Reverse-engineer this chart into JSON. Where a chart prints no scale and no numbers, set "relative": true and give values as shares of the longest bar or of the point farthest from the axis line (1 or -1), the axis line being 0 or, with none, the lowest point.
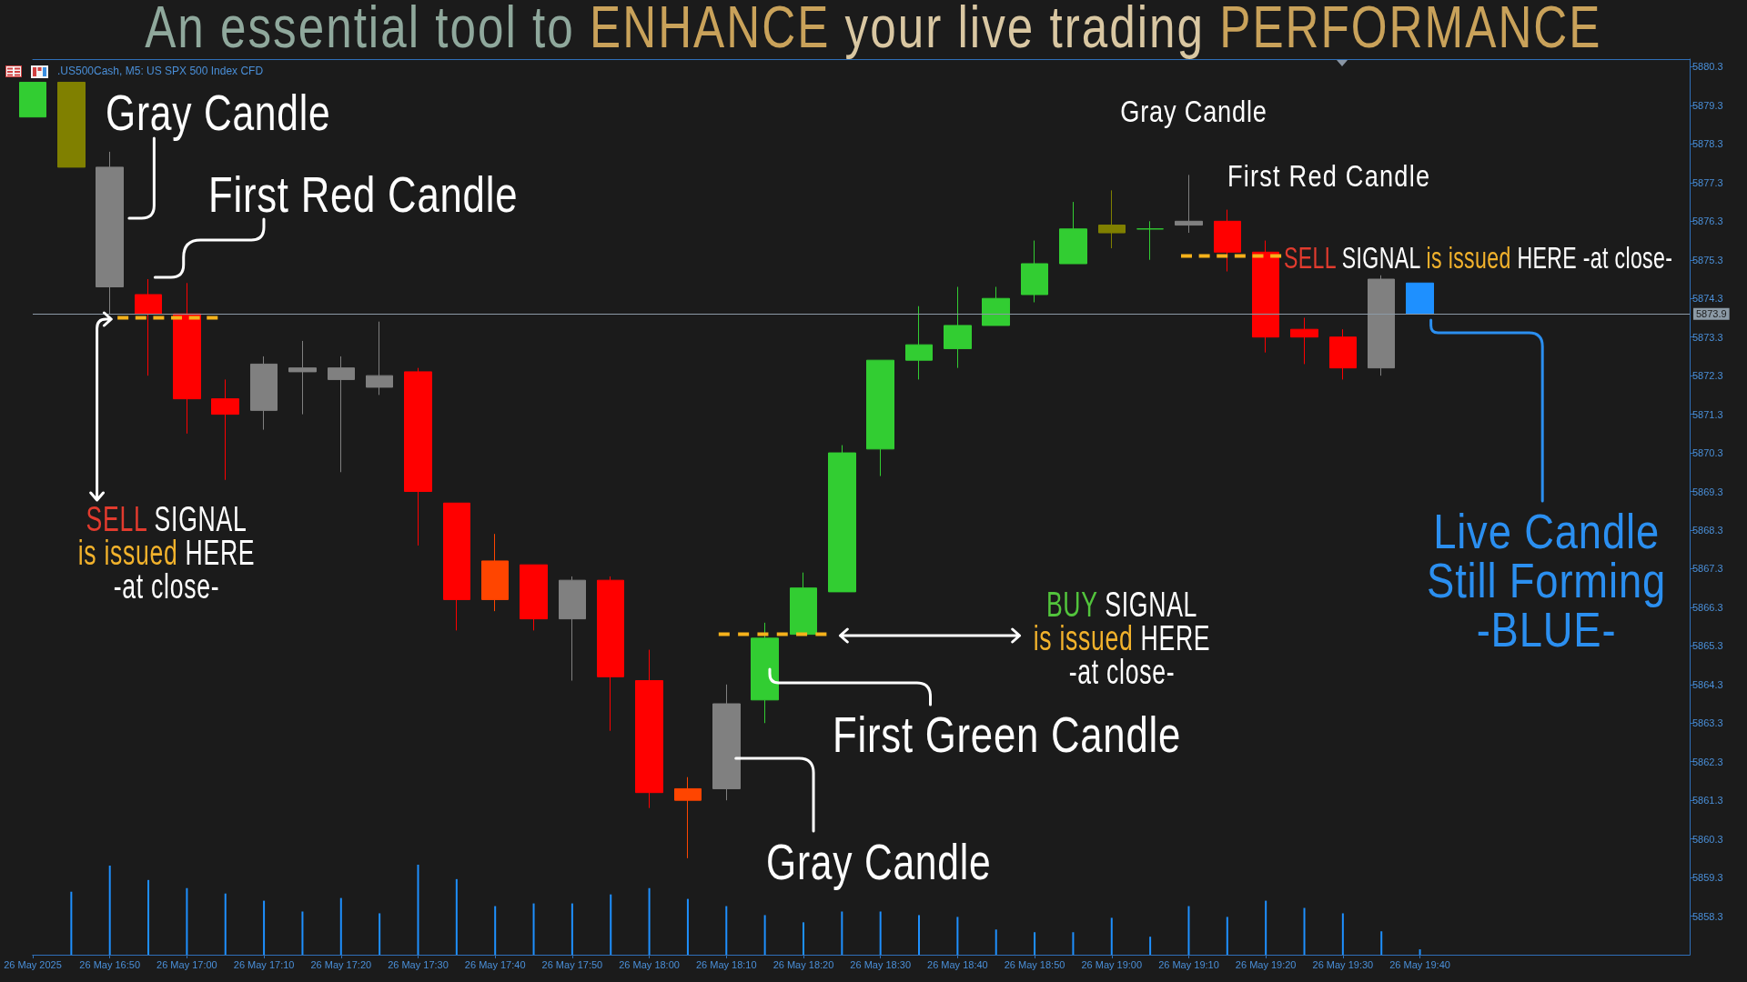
{
  "chart_data": [
    {
      "type": "candlestick",
      "title": "An essential tool to ENHANCE your live trading PERFORMANCE",
      "subtitle": ".US500Cash, M5: US SPX 500 Index CFD",
      "annotations": [
        "Gray Candle",
        "First Red Candle",
        "SELL SIGNAL is issued HERE -at close-",
        "Gray Candle",
        "First Red Candle",
        "SELL SIGNAL is issued HERE -at close-",
        "Live Candle Still Forming -BLUE-",
        "BUY SIGNAL is issued HERE -at close-",
        "First Green Candle",
        "Gray Candle"
      ],
      "x": [
        "2025-05-26T16:40",
        "2025-05-26T16:45",
        "2025-05-26T16:50",
        "2025-05-26T16:55",
        "2025-05-26T17:00",
        "2025-05-26T17:05",
        "2025-05-26T17:10",
        "2025-05-26T17:15",
        "2025-05-26T17:20",
        "2025-05-26T17:25",
        "2025-05-26T17:30",
        "2025-05-26T17:35",
        "2025-05-26T17:40",
        "2025-05-26T17:45",
        "2025-05-26T17:50",
        "2025-05-26T17:55",
        "2025-05-26T18:00",
        "2025-05-26T18:05",
        "2025-05-26T18:10",
        "2025-05-26T18:15",
        "2025-05-26T18:20",
        "2025-05-26T18:25",
        "2025-05-26T18:30",
        "2025-05-26T18:35",
        "2025-05-26T18:40",
        "2025-05-26T18:45",
        "2025-05-26T18:50",
        "2025-05-26T18:55",
        "2025-05-26T19:00",
        "2025-05-26T19:05",
        "2025-05-26T19:10",
        "2025-05-26T19:15",
        "2025-05-26T19:20",
        "2025-05-26T19:25",
        "2025-05-26T19:30",
        "2025-05-26T19:35",
        "2025-05-26T19:40"
      ],
      "ohlc": [
        [
          5879.0,
          5879.9,
          5879.0,
          5879.9
        ],
        [
          5879.9,
          5879.9,
          5877.7,
          5877.7
        ],
        [
          5877.7,
          5878.1,
          5873.9,
          5874.6
        ],
        [
          5874.4,
          5874.8,
          5872.3,
          5873.9
        ],
        [
          5873.9,
          5874.7,
          5870.8,
          5871.7
        ],
        [
          5871.7,
          5872.2,
          5869.6,
          5871.3
        ],
        [
          5871.4,
          5872.8,
          5870.9,
          5872.6
        ],
        [
          5872.5,
          5873.2,
          5871.3,
          5872.4
        ],
        [
          5872.5,
          5872.8,
          5869.8,
          5872.2
        ],
        [
          5872.3,
          5873.7,
          5871.8,
          5872.0
        ],
        [
          5872.4,
          5872.5,
          5867.9,
          5869.3
        ],
        [
          5869.0,
          5869.0,
          5865.7,
          5866.5
        ],
        [
          5866.5,
          5868.2,
          5866.2,
          5867.5
        ],
        [
          5867.4,
          5867.4,
          5865.7,
          5866.0
        ],
        [
          5866.0,
          5867.1,
          5864.4,
          5867.0
        ],
        [
          5867.0,
          5867.1,
          5863.1,
          5864.5
        ],
        [
          5864.4,
          5865.2,
          5861.1,
          5861.5
        ],
        [
          5861.3,
          5861.9,
          5859.8,
          5861.6
        ],
        [
          5861.6,
          5864.3,
          5861.3,
          5863.8
        ],
        [
          5863.9,
          5865.9,
          5863.3,
          5865.5
        ],
        [
          5865.6,
          5867.2,
          5865.6,
          5866.8
        ],
        [
          5866.7,
          5870.5,
          5866.7,
          5870.3
        ],
        [
          5870.4,
          5872.7,
          5869.7,
          5872.7
        ],
        [
          5872.7,
          5874.1,
          5872.2,
          5873.1
        ],
        [
          5873.0,
          5874.6,
          5872.5,
          5873.6
        ],
        [
          5873.6,
          5874.6,
          5873.6,
          5874.3
        ],
        [
          5874.4,
          5875.8,
          5874.2,
          5875.2
        ],
        [
          5875.2,
          5876.8,
          5875.2,
          5876.1
        ],
        [
          5876.0,
          5877.1,
          5875.6,
          5876.2
        ],
        [
          5876.1,
          5876.3,
          5875.3,
          5876.1
        ],
        [
          5876.2,
          5877.5,
          5876.0,
          5876.3
        ],
        [
          5876.3,
          5876.6,
          5875.0,
          5875.5
        ],
        [
          5875.5,
          5875.8,
          5872.9,
          5873.3
        ],
        [
          5873.5,
          5873.8,
          5872.6,
          5873.3
        ],
        [
          5873.3,
          5873.5,
          5872.2,
          5872.5
        ],
        [
          5872.5,
          5874.9,
          5872.3,
          5874.8
        ],
        [
          5874.7,
          5874.7,
          5873.9,
          5873.9
        ]
      ],
      "colors": [
        "#32cd32",
        "#808000",
        "#808080",
        "#ff0000",
        "#ff0000",
        "#ff0000",
        "#808080",
        "#808080",
        "#808080",
        "#808080",
        "#ff0000",
        "#ff0000",
        "#ff4500",
        "#ff0000",
        "#808080",
        "#ff0000",
        "#ff0000",
        "#ff4500",
        "#808080",
        "#32cd32",
        "#32cd32",
        "#32cd32",
        "#32cd32",
        "#32cd32",
        "#32cd32",
        "#32cd32",
        "#32cd32",
        "#32cd32",
        "#808000",
        "#32cd32",
        "#808080",
        "#ff0000",
        "#ff0000",
        "#ff0000",
        "#ff0000",
        "#808080",
        "#1e90ff"
      ],
      "series": [
        {
          "type": "line",
          "x": [
            "2025-05-26T16:51",
            "2025-05-26T17:04"
          ],
          "values": [
            5873.8,
            5873.8
          ],
          "color": "#f5b21b",
          "line_style": "dashed"
        },
        {
          "type": "line",
          "x": [
            "2025-05-26T18:09",
            "2025-05-26T18:23"
          ],
          "values": [
            5865.6,
            5865.6
          ],
          "color": "#f5b21b",
          "line_style": "dashed"
        },
        {
          "type": "line",
          "x": [
            "2025-05-26T19:09",
            "2025-05-26T19:22"
          ],
          "values": [
            5875.4,
            5875.4
          ],
          "color": "#f5b21b",
          "line_style": "dashed"
        }
      ],
      "xlim": [
        "2025-05-26T16:40",
        "2025-05-26T20:15"
      ],
      "ylim": [
        5857.3,
        5880.5
      ],
      "yticks": [
        5858.3,
        5859.3,
        5860.3,
        5861.3,
        5862.3,
        5863.3,
        5864.3,
        5865.3,
        5866.3,
        5867.3,
        5868.3,
        5869.3,
        5870.3,
        5871.3,
        5872.3,
        5873.3,
        5874.3,
        5875.3,
        5876.3,
        5877.3,
        5878.3,
        5879.3,
        5880.3
      ],
      "tick_labels": "y",
      "ref_lines": [
        {
          "axis": "y",
          "value": 5873.9,
          "label": "5873.9",
          "color": "#8c9aa6"
        }
      ]
    },
    {
      "type": "bar",
      "relative": true,
      "color": "#1e90ff",
      "xlim": [
        "2025-05-26T16:40",
        "2025-05-26T20:15"
      ],
      "xticks": [
        {
          "value": "2025-05-26T16:40",
          "label": "26 May 2025"
        },
        {
          "value": "2025-05-26T16:50",
          "label": "26 May 16:50"
        },
        {
          "value": "2025-05-26T17:00",
          "label": "26 May 17:00"
        },
        {
          "value": "2025-05-26T17:10",
          "label": "26 May 17:10"
        },
        {
          "value": "2025-05-26T17:20",
          "label": "26 May 17:20"
        },
        {
          "value": "2025-05-26T17:30",
          "label": "26 May 17:30"
        },
        {
          "value": "2025-05-26T17:40",
          "label": "26 May 17:40"
        },
        {
          "value": "2025-05-26T17:50",
          "label": "26 May 17:50"
        },
        {
          "value": "2025-05-26T18:00",
          "label": "26 May 18:00"
        },
        {
          "value": "2025-05-26T18:10",
          "label": "26 May 18:10"
        },
        {
          "value": "2025-05-26T18:20",
          "label": "26 May 18:20"
        },
        {
          "value": "2025-05-26T18:30",
          "label": "26 May 18:30"
        },
        {
          "value": "2025-05-26T18:40",
          "label": "26 May 18:40"
        },
        {
          "value": "2025-05-26T18:50",
          "label": "26 May 18:50"
        },
        {
          "value": "2025-05-26T19:00",
          "label": "26 May 19:00"
        },
        {
          "value": "2025-05-26T19:10",
          "label": "26 May 19:10"
        },
        {
          "value": "2025-05-26T19:20",
          "label": "26 May 19:20"
        },
        {
          "value": "2025-05-26T19:30",
          "label": "26 May 19:30"
        },
        {
          "value": "2025-05-26T19:40",
          "label": "26 May 19:40"
        }
      ],
      "x": [
        "2025-05-26T16:45",
        "2025-05-26T16:50",
        "2025-05-26T16:55",
        "2025-05-26T17:00",
        "2025-05-26T17:05",
        "2025-05-26T17:10",
        "2025-05-26T17:15",
        "2025-05-26T17:20",
        "2025-05-26T17:25",
        "2025-05-26T17:30",
        "2025-05-26T17:35",
        "2025-05-26T17:40",
        "2025-05-26T17:45",
        "2025-05-26T17:50",
        "2025-05-26T17:55",
        "2025-05-26T18:00",
        "2025-05-26T18:05",
        "2025-05-26T18:10",
        "2025-05-26T18:15",
        "2025-05-26T18:20",
        "2025-05-26T18:25",
        "2025-05-26T18:30",
        "2025-05-26T18:35",
        "2025-05-26T18:40",
        "2025-05-26T18:45",
        "2025-05-26T18:50",
        "2025-05-26T18:55",
        "2025-05-26T19:00",
        "2025-05-26T19:05",
        "2025-05-26T19:10",
        "2025-05-26T19:15",
        "2025-05-26T19:20",
        "2025-05-26T19:25",
        "2025-05-26T19:30",
        "2025-05-26T19:35",
        "2025-05-26T19:40"
      ],
      "values": [
        0.7,
        0.99,
        0.83,
        0.74,
        0.68,
        0.6,
        0.48,
        0.63,
        0.46,
        1,
        0.84,
        0.54,
        0.57,
        0.57,
        0.67,
        0.74,
        0.62,
        0.54,
        0.44,
        0.36,
        0.48,
        0.48,
        0.44,
        0.42,
        0.28,
        0.25,
        0.25,
        0.41,
        0.2,
        0.54,
        0.42,
        0.6,
        0.52,
        0.46,
        0.26,
        0.06
      ]
    }
  ]
}
